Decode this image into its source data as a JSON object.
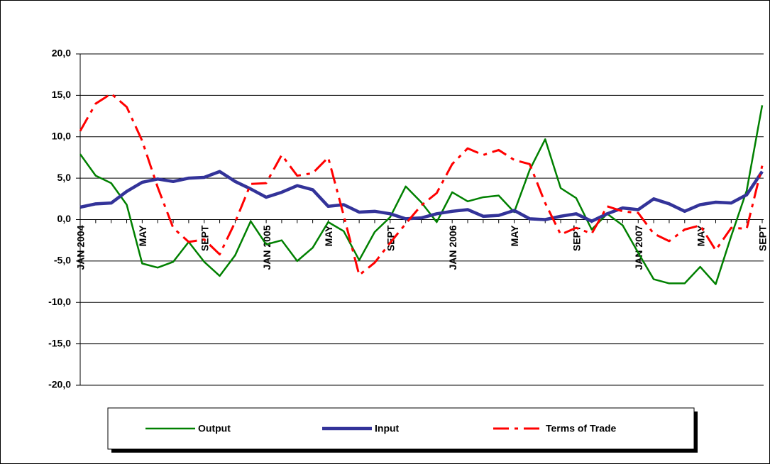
{
  "chart_data": {
    "type": "line",
    "categories": [
      "JAN 2004",
      null,
      null,
      null,
      "MAY",
      null,
      null,
      null,
      "SEPT",
      null,
      null,
      null,
      "JAN 2005",
      null,
      null,
      null,
      "MAY",
      null,
      null,
      null,
      "SEPT",
      null,
      null,
      null,
      "JAN 2006",
      null,
      null,
      null,
      "MAY",
      null,
      null,
      null,
      "SEPT",
      null,
      null,
      null,
      "JAN 2007",
      null,
      null,
      null,
      "MAY",
      null,
      null,
      null,
      "SEPT"
    ],
    "series": [
      {
        "name": "Output",
        "color": "#008000",
        "values": [
          7.9,
          5.3,
          4.4,
          1.8,
          -5.3,
          -5.8,
          -5.1,
          -2.7,
          -5.1,
          -6.8,
          -4.3,
          -0.2,
          -3.0,
          -2.5,
          -5.0,
          -3.4,
          -0.3,
          -1.4,
          -4.9,
          -1.5,
          0.3,
          4.0,
          2.1,
          -0.3,
          3.3,
          2.2,
          2.7,
          2.9,
          0.9,
          6.0,
          9.7,
          3.8,
          2.6,
          -1.2,
          0.7,
          -0.7,
          -4.0,
          -7.2,
          -7.7,
          -7.7,
          -5.7,
          -7.8,
          -2.0,
          3.5,
          13.8
        ]
      },
      {
        "name": "Input",
        "color": "#333399",
        "values": [
          1.5,
          1.9,
          2.0,
          3.4,
          4.5,
          4.9,
          4.6,
          5.0,
          5.1,
          5.8,
          4.6,
          3.7,
          2.7,
          3.3,
          4.1,
          3.6,
          1.6,
          1.8,
          0.9,
          1.0,
          0.7,
          0.1,
          0.2,
          0.7,
          1.0,
          1.2,
          0.4,
          0.5,
          1.1,
          0.1,
          0.0,
          0.4,
          0.7,
          -0.2,
          0.7,
          1.4,
          1.2,
          2.5,
          1.9,
          1.0,
          1.8,
          2.1,
          2.0,
          3.0,
          5.8
        ]
      },
      {
        "name": "Terms of Trade",
        "color": "#ff0000",
        "values": [
          10.7,
          14.0,
          15.2,
          13.6,
          9.5,
          3.9,
          -1.0,
          -2.7,
          -2.4,
          -4.2,
          -0.3,
          4.3,
          4.4,
          7.8,
          5.3,
          5.6,
          7.5,
          0.5,
          -6.7,
          -5.2,
          -2.8,
          -0.5,
          1.7,
          3.2,
          6.7,
          8.6,
          7.8,
          8.4,
          7.2,
          6.7,
          2.0,
          -1.8,
          -1.0,
          -1.7,
          1.6,
          1.0,
          0.8,
          -1.7,
          -2.6,
          -1.2,
          -0.7,
          -3.7,
          -1.0,
          -1.1,
          6.5
        ]
      }
    ],
    "ylim": [
      -20,
      20
    ],
    "yticks": [
      {
        "value": -20,
        "label": "-20,0"
      },
      {
        "value": -15,
        "label": "-15,0"
      },
      {
        "value": -10,
        "label": "-10,0"
      },
      {
        "value": -5,
        "label": "-5,0"
      },
      {
        "value": 0,
        "label": "0,0"
      },
      {
        "value": 5,
        "label": "5,0"
      },
      {
        "value": 10,
        "label": "10,0"
      },
      {
        "value": 15,
        "label": "15,0"
      },
      {
        "value": 20,
        "label": "20,0"
      }
    ],
    "grid": true
  }
}
